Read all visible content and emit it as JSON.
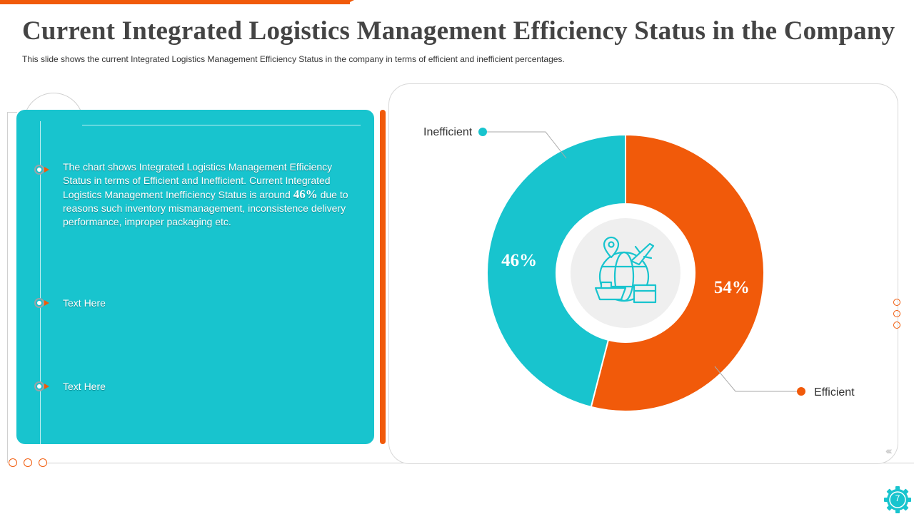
{
  "slide": {
    "title": "Current Integrated Logistics Management Efficiency Status in the Company",
    "subtitle": "This slide shows the current Integrated Logistics Management Efficiency Status in the company in terms of efficient and inefficient percentages.",
    "page_number": "7"
  },
  "panel": {
    "paragraph_before": "The chart shows Integrated Logistics Management Efficiency Status in terms of Efficient and Inefficient. Current Integrated Logistics Management Inefficiency Status is around ",
    "paragraph_highlight": "46%",
    "paragraph_after": " due to reasons such inventory mismanagement, inconsistence delivery performance, improper packaging etc.",
    "item_2": "Text Here",
    "item_3": "Text Here"
  },
  "colors": {
    "accent_orange": "#f15a0a",
    "accent_teal": "#18c4ce"
  },
  "icons": {
    "center": "logistics-globe-icon",
    "badge": "gear-icon"
  },
  "chart_data": {
    "type": "pie",
    "categories": [
      "Efficient",
      "Inefficient"
    ],
    "values": [
      54,
      46
    ],
    "data_labels": [
      "54%",
      "46%"
    ],
    "colors": [
      "#f15a0a",
      "#18c4ce"
    ],
    "donut": true
  }
}
